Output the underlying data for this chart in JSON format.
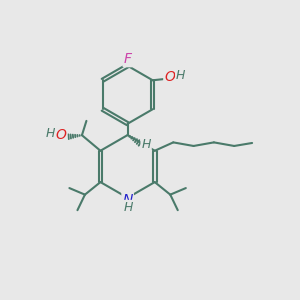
{
  "background_color": "#e8e8e8",
  "bond_color": "#4a7a6a",
  "bond_width": 1.5,
  "atoms": {
    "F": {
      "color": "#cc44aa",
      "fontsize": 10
    },
    "O": {
      "color": "#dd2222",
      "fontsize": 10
    },
    "N": {
      "color": "#2222cc",
      "fontsize": 10
    },
    "H": {
      "color": "#4a7a6a",
      "fontsize": 9
    },
    "OH": {
      "color": "#dd2222",
      "fontsize": 10
    }
  },
  "figsize": [
    3.0,
    3.0
  ],
  "dpi": 100
}
